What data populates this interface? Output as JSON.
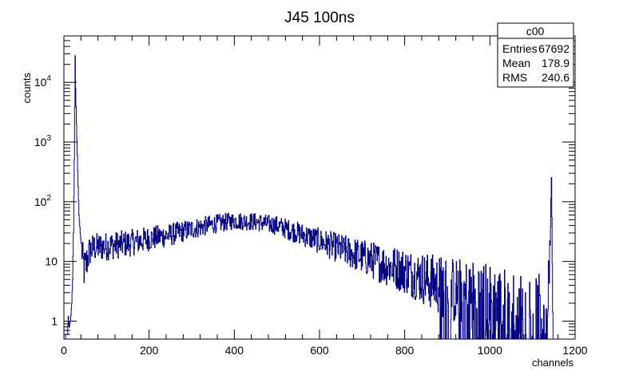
{
  "chart_data": {
    "type": "histogram",
    "title": "J45 100ns",
    "xlabel": "channels",
    "ylabel": "counts",
    "xlim": [
      0,
      1200
    ],
    "ylim": [
      0.5,
      60000
    ],
    "yscale": "log",
    "xticks": [
      "0",
      "200",
      "400",
      "600",
      "800",
      "1000",
      "1200"
    ],
    "yticks": [
      {
        "value": 1,
        "label": "1"
      },
      {
        "value": 10,
        "label": "10"
      },
      {
        "value": 100,
        "label": "10",
        "exp": "2"
      },
      {
        "value": 1000,
        "label": "10",
        "exp": "3"
      },
      {
        "value": 10000,
        "label": "10",
        "exp": "4"
      }
    ],
    "color": "#000080",
    "stats": {
      "name": "c00",
      "rows": [
        {
          "label": "Entries",
          "value": "67692"
        },
        {
          "label": "Mean",
          "value": "178.9"
        },
        {
          "label": "RMS",
          "value": "240.6"
        }
      ]
    },
    "spectrum_points": [
      [
        0,
        0
      ],
      [
        8,
        0.6
      ],
      [
        10,
        1.2
      ],
      [
        12,
        0.8
      ],
      [
        15,
        1
      ],
      [
        18,
        2
      ],
      [
        20,
        5
      ],
      [
        22,
        30
      ],
      [
        24,
        500
      ],
      [
        26,
        28000
      ],
      [
        27,
        8000
      ],
      [
        29,
        2000
      ],
      [
        31,
        600
      ],
      [
        33,
        180
      ],
      [
        35,
        60
      ],
      [
        38,
        30
      ],
      [
        40,
        20
      ],
      [
        44,
        10
      ],
      [
        48,
        7
      ],
      [
        52,
        9
      ],
      [
        56,
        12
      ],
      [
        60,
        15
      ],
      [
        70,
        17
      ],
      [
        100,
        18
      ],
      [
        150,
        20
      ],
      [
        200,
        24
      ],
      [
        250,
        28
      ],
      [
        300,
        35
      ],
      [
        350,
        42
      ],
      [
        400,
        48
      ],
      [
        450,
        46
      ],
      [
        500,
        40
      ],
      [
        550,
        30
      ],
      [
        600,
        22
      ],
      [
        650,
        16
      ],
      [
        700,
        12
      ],
      [
        750,
        9
      ],
      [
        800,
        7
      ],
      [
        850,
        5
      ],
      [
        900,
        3.5
      ],
      [
        950,
        2.7
      ],
      [
        1000,
        2
      ],
      [
        1050,
        1.6
      ],
      [
        1100,
        1.4
      ],
      [
        1130,
        1.2
      ],
      [
        1138,
        5
      ],
      [
        1140,
        15
      ],
      [
        1142,
        50
      ],
      [
        1144,
        240
      ],
      [
        1145,
        60
      ],
      [
        1146,
        10
      ],
      [
        1148,
        1
      ],
      [
        1150,
        0
      ]
    ]
  }
}
